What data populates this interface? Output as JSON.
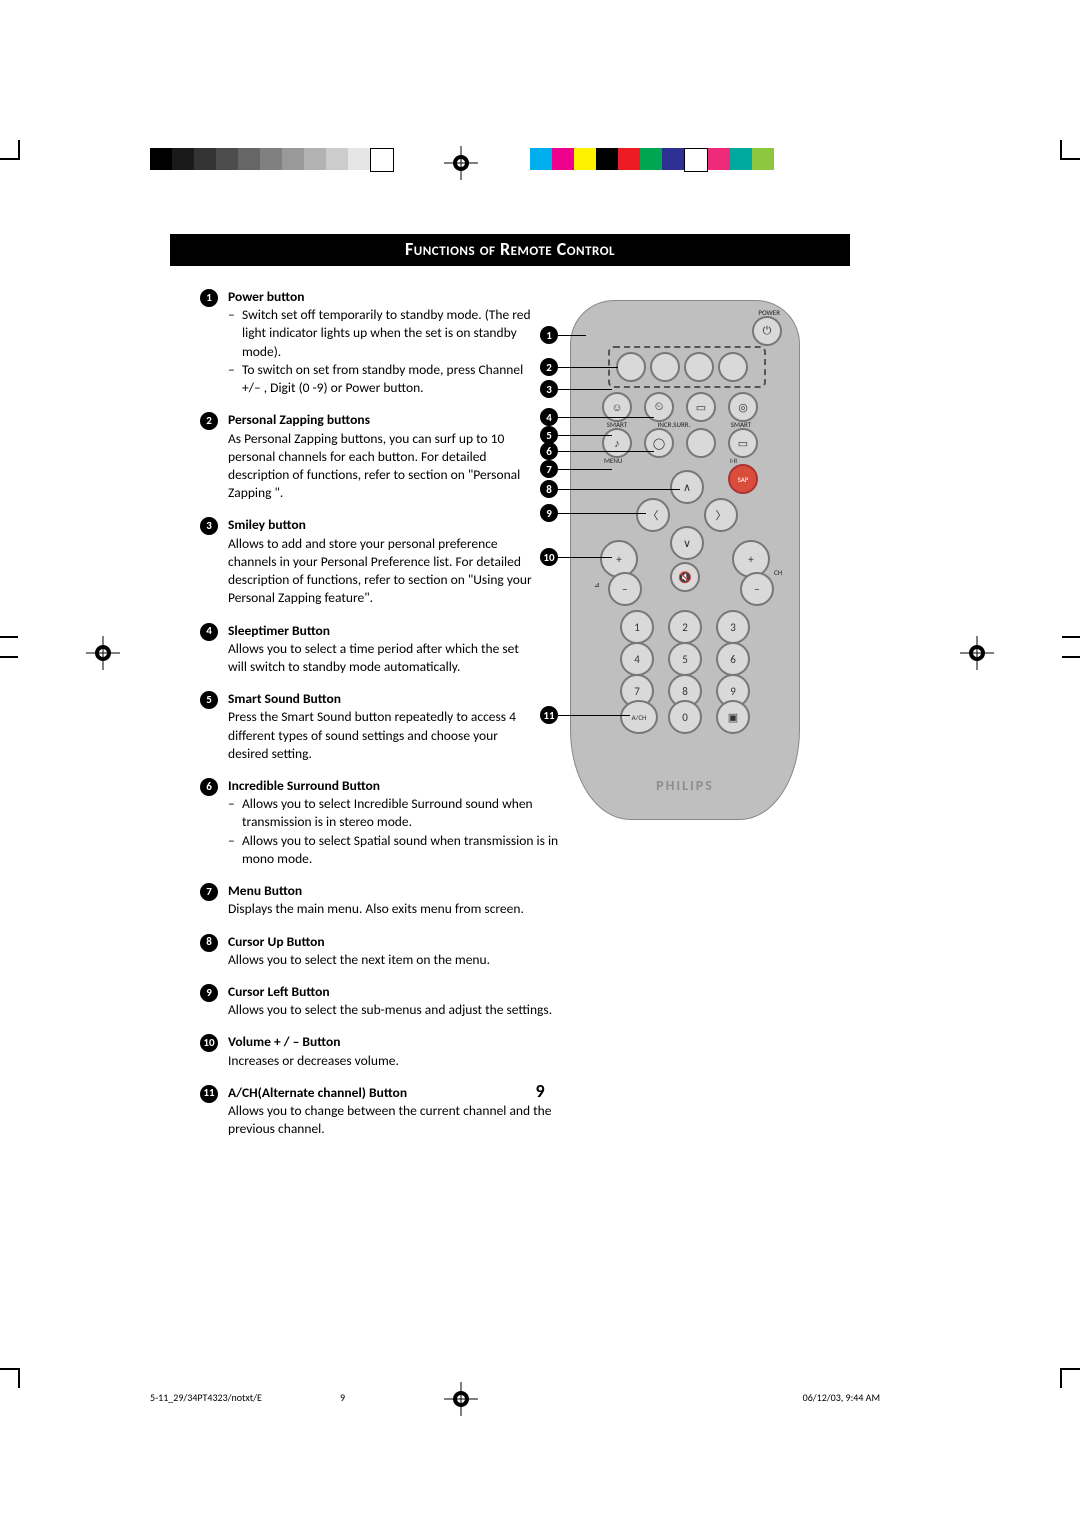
{
  "header": {
    "title": "Functions of Remote Control"
  },
  "items": [
    {
      "n": "1",
      "title": "Power button",
      "bullets": [
        "Switch set off temporarily to standby mode. (The red light indicator lights up when the set is on standby mode).",
        "To switch on set from standby mode, press Channel +/– , Digit (0 -9) or Power button."
      ]
    },
    {
      "n": "2",
      "title": "Personal Zapping buttons",
      "body": "As Personal Zapping buttons, you can surf up to 10 personal channels for each button. For detailed description of functions, refer to section on \"Personal Zapping \"."
    },
    {
      "n": "3",
      "title": "Smiley button",
      "body": "Allows to add and store your personal preference channels in your Personal Preference list. For detailed description of functions, refer to section on \"Using your Personal Zapping feature\"."
    },
    {
      "n": "4",
      "title": "Sleeptimer Button",
      "body": "Allows you to select a time period after which the set will switch to standby mode automatically."
    },
    {
      "n": "5",
      "title": "Smart Sound Button",
      "body": "Press the Smart Sound button repeatedly to access 4 different types of sound settings and choose your desired setting."
    },
    {
      "n": "6",
      "title": "Incredible Surround Button",
      "bullets": [
        "Allows you to select Incredible Surround sound when transmission is in stereo mode.",
        "Allows you to select Spatial sound when transmission is in mono mode."
      ]
    },
    {
      "n": "7",
      "title": "Menu Button",
      "body": "Displays the main menu. Also exits menu from screen."
    },
    {
      "n": "8",
      "title": "Cursor Up Button",
      "body": "Allows you to select the next item on the menu."
    },
    {
      "n": "9",
      "title": "Cursor Left Button",
      "body": "Allows you to select the sub-menus and adjust the settings."
    },
    {
      "n": "10",
      "title": "Volume + / – Button",
      "body": "Increases or decreases volume."
    },
    {
      "n": "11",
      "title": "A/CH(Alternate channel) Button",
      "body": "Allows you to change between the current channel and the previous channel."
    }
  ],
  "page_number": "9",
  "footer": {
    "left": "5-11_29/34PT4323/notxt/E",
    "mid": "9",
    "right": "06/12/03, 9:44 AM"
  },
  "bars": {
    "gray": [
      "#000000",
      "#1a1a1a",
      "#333333",
      "#4d4d4d",
      "#666666",
      "#808080",
      "#999999",
      "#b3b3b3",
      "#cccccc",
      "#e6e6e6",
      "#ffffff"
    ],
    "color": [
      "#00aeef",
      "#ec008c",
      "#fff200",
      "#000000",
      "#ed1c24",
      "#00a651",
      "#2e3192",
      "#ffffff",
      "#ee2a7b",
      "#00a99d",
      "#8dc63f"
    ]
  },
  "remote": {
    "brand": "PHILIPS",
    "labels": {
      "power": "POWER",
      "smart": "SMART",
      "incr": "INCR.SURR.",
      "smart2": "SMART",
      "menu": "MENU",
      "iii": "I·II",
      "sap": "SAP",
      "ch": "CH",
      "ach": "A/CH"
    },
    "digits": [
      "1",
      "2",
      "3",
      "4",
      "5",
      "6",
      "7",
      "8",
      "9",
      "0"
    ],
    "callouts": [
      "1",
      "2",
      "3",
      "4",
      "5",
      "6",
      "7",
      "8",
      "9",
      "10",
      "11"
    ]
  }
}
